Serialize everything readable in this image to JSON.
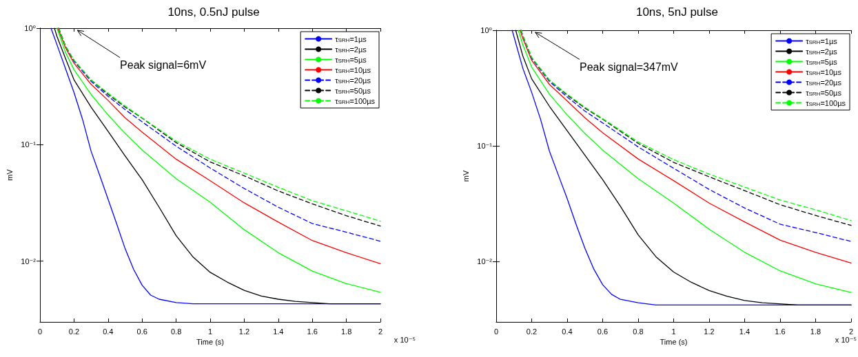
{
  "chart_data": [
    {
      "type": "line",
      "title": "10ns, 0.5nJ pulse",
      "xlabel": "Time (s)",
      "ylabel": "mV",
      "log": "y",
      "grid": false,
      "legend": "top right",
      "marker": "none",
      "xlim": [
        0,
        2
      ],
      "xticks": [
        0,
        0.2,
        0.4,
        0.6,
        0.8,
        1,
        1.2,
        1.4,
        1.6,
        1.8,
        2
      ],
      "ylim": [
        0.003,
        1
      ],
      "yticks": [
        {
          "value": 0.01,
          "label": "10⁻²"
        },
        {
          "value": 0.1,
          "label": "10⁻¹"
        },
        {
          "value": 1,
          "label": "10⁰"
        }
      ],
      "annotations": [
        "x 10⁻⁵",
        "Peak signal=6mV"
      ],
      "series": [
        {
          "name": "τ$_{SRH}$=1µs",
          "color": "#0000ff",
          "line_style": "solid",
          "x": [
            0.065,
            0.1,
            0.15,
            0.2,
            0.25,
            0.3,
            0.35,
            0.4,
            0.45,
            0.5,
            0.55,
            0.6,
            0.65,
            0.7,
            0.8,
            0.9,
            1.0,
            1.2,
            1.6,
            2.0
          ],
          "values": [
            1,
            0.72,
            0.45,
            0.28,
            0.165,
            0.088,
            0.055,
            0.034,
            0.021,
            0.0128,
            0.0085,
            0.0062,
            0.0051,
            0.0047,
            0.0044,
            0.0043,
            0.0043,
            0.0043,
            0.0043,
            0.0043
          ]
        },
        {
          "name": "τ$_{SRH}$=2µs",
          "color": "#000000",
          "line_style": "solid",
          "x": [
            0.085,
            0.1,
            0.15,
            0.2,
            0.3,
            0.4,
            0.5,
            0.6,
            0.7,
            0.8,
            0.9,
            1.0,
            1.1,
            1.2,
            1.3,
            1.4,
            1.5,
            1.7,
            2.0
          ],
          "values": [
            1,
            0.85,
            0.55,
            0.36,
            0.21,
            0.13,
            0.08,
            0.05,
            0.029,
            0.0165,
            0.0108,
            0.008,
            0.0066,
            0.0056,
            0.005,
            0.0047,
            0.0045,
            0.0043,
            0.0043
          ]
        },
        {
          "name": "τ$_{SRH}$=5µs",
          "color": "#00ff00",
          "line_style": "solid",
          "x": [
            0.1,
            0.15,
            0.2,
            0.3,
            0.4,
            0.5,
            0.6,
            0.8,
            1.0,
            1.2,
            1.4,
            1.6,
            1.8,
            2.0
          ],
          "values": [
            1,
            0.62,
            0.44,
            0.27,
            0.18,
            0.125,
            0.09,
            0.051,
            0.032,
            0.0186,
            0.0118,
            0.0082,
            0.0064,
            0.0054
          ]
        },
        {
          "name": "τ$_{SRH}$=10µs",
          "color": "#ff0000",
          "line_style": "solid",
          "x": [
            0.105,
            0.15,
            0.2,
            0.3,
            0.4,
            0.5,
            0.6,
            0.8,
            1.0,
            1.2,
            1.4,
            1.6,
            1.8,
            2.0
          ],
          "values": [
            1,
            0.68,
            0.5,
            0.33,
            0.24,
            0.17,
            0.128,
            0.075,
            0.049,
            0.0316,
            0.0216,
            0.015,
            0.0118,
            0.0095
          ]
        },
        {
          "name": "τ$_{SRH}$=20µs",
          "color": "#0000ff",
          "line_style": "dashed",
          "x": [
            0.11,
            0.15,
            0.2,
            0.3,
            0.4,
            0.5,
            0.6,
            0.8,
            1.0,
            1.2,
            1.4,
            1.6,
            1.8,
            2.0
          ],
          "values": [
            1,
            0.7,
            0.52,
            0.35,
            0.26,
            0.2,
            0.157,
            0.097,
            0.063,
            0.042,
            0.029,
            0.021,
            0.0177,
            0.0148
          ]
        },
        {
          "name": "τ$_{SRH}$=50µs",
          "color": "#000000",
          "line_style": "dashed",
          "x": [
            0.11,
            0.15,
            0.2,
            0.3,
            0.4,
            0.5,
            0.6,
            0.8,
            1.0,
            1.2,
            1.4,
            1.6,
            1.8,
            2.0
          ],
          "values": [
            1,
            0.7,
            0.53,
            0.36,
            0.27,
            0.21,
            0.169,
            0.104,
            0.071,
            0.054,
            0.04,
            0.031,
            0.0245,
            0.02
          ]
        },
        {
          "name": "τ$_{SRH}$=100µs",
          "color": "#00ff00",
          "line_style": "dashed",
          "x": [
            0.11,
            0.15,
            0.2,
            0.3,
            0.4,
            0.5,
            0.6,
            0.8,
            1.0,
            1.2,
            1.4,
            1.6,
            1.8,
            2.0
          ],
          "values": [
            1,
            0.7,
            0.53,
            0.36,
            0.277,
            0.215,
            0.17,
            0.107,
            0.075,
            0.057,
            0.043,
            0.033,
            0.027,
            0.022
          ]
        }
      ]
    },
    {
      "type": "line",
      "title": "10ns, 5nJ pulse",
      "xlabel": "Time (s)",
      "ylabel": "mV",
      "log": "y",
      "grid": false,
      "legend": "top right",
      "marker": "none",
      "xlim": [
        0,
        2
      ],
      "xticks": [
        0,
        0.2,
        0.4,
        0.6,
        0.8,
        1,
        1.2,
        1.4,
        1.6,
        1.8,
        2
      ],
      "ylim": [
        0.003,
        1
      ],
      "yticks": [
        {
          "value": 0.01,
          "label": "10⁻²"
        },
        {
          "value": 0.1,
          "label": "10⁻¹"
        },
        {
          "value": 1,
          "label": "10⁰"
        }
      ],
      "annotations": [
        "x 10⁻⁵",
        "Peak signal=347mV"
      ],
      "series": [
        {
          "name": "τ$_{SRH}$=1µs",
          "color": "#0000ff",
          "line_style": "solid",
          "x": [
            0.09,
            0.15,
            0.2,
            0.25,
            0.3,
            0.35,
            0.4,
            0.45,
            0.5,
            0.55,
            0.6,
            0.65,
            0.7,
            0.8,
            0.9,
            1.0,
            1.2,
            1.6,
            2.0
          ],
          "values": [
            1,
            0.47,
            0.29,
            0.17,
            0.09,
            0.056,
            0.035,
            0.021,
            0.013,
            0.0086,
            0.0063,
            0.0052,
            0.0047,
            0.0044,
            0.0042,
            0.0042,
            0.0042,
            0.0042,
            0.0042
          ]
        },
        {
          "name": "τ$_{SRH}$=2µs",
          "color": "#000000",
          "line_style": "solid",
          "x": [
            0.11,
            0.15,
            0.2,
            0.3,
            0.4,
            0.5,
            0.6,
            0.7,
            0.8,
            0.9,
            1.0,
            1.1,
            1.2,
            1.3,
            1.4,
            1.5,
            1.7,
            2.0
          ],
          "values": [
            1,
            0.6,
            0.38,
            0.22,
            0.135,
            0.083,
            0.051,
            0.03,
            0.017,
            0.011,
            0.0081,
            0.0066,
            0.0056,
            0.005,
            0.0046,
            0.0044,
            0.0042,
            0.0042
          ]
        },
        {
          "name": "τ$_{SRH}$=5µs",
          "color": "#00ff00",
          "line_style": "solid",
          "x": [
            0.125,
            0.15,
            0.2,
            0.3,
            0.4,
            0.5,
            0.6,
            0.8,
            1.0,
            1.2,
            1.4,
            1.6,
            1.8,
            2.0
          ],
          "values": [
            1,
            0.75,
            0.48,
            0.28,
            0.185,
            0.128,
            0.092,
            0.052,
            0.032,
            0.019,
            0.012,
            0.0083,
            0.0064,
            0.0054
          ]
        },
        {
          "name": "τ$_{SRH}$=10µs",
          "color": "#ff0000",
          "line_style": "solid",
          "x": [
            0.135,
            0.15,
            0.2,
            0.3,
            0.4,
            0.5,
            0.6,
            0.8,
            1.0,
            1.2,
            1.4,
            1.6,
            1.8,
            2.0
          ],
          "values": [
            1,
            0.85,
            0.55,
            0.34,
            0.245,
            0.175,
            0.13,
            0.077,
            0.05,
            0.032,
            0.022,
            0.0153,
            0.012,
            0.0097
          ]
        },
        {
          "name": "τ$_{SRH}$=20µs",
          "color": "#0000ff",
          "line_style": "dashed",
          "x": [
            0.14,
            0.15,
            0.2,
            0.3,
            0.4,
            0.5,
            0.6,
            0.8,
            1.0,
            1.2,
            1.4,
            1.6,
            1.8,
            2.0
          ],
          "values": [
            1,
            0.9,
            0.57,
            0.36,
            0.265,
            0.2,
            0.158,
            0.098,
            0.064,
            0.042,
            0.029,
            0.021,
            0.0178,
            0.0149
          ]
        },
        {
          "name": "τ$_{SRH}$=50µs",
          "color": "#000000",
          "line_style": "dashed",
          "x": [
            0.14,
            0.15,
            0.2,
            0.3,
            0.4,
            0.5,
            0.6,
            0.8,
            1.0,
            1.2,
            1.4,
            1.6,
            1.8,
            2.0
          ],
          "values": [
            1,
            0.9,
            0.58,
            0.37,
            0.275,
            0.212,
            0.17,
            0.105,
            0.072,
            0.054,
            0.041,
            0.031,
            0.025,
            0.0205
          ]
        },
        {
          "name": "τ$_{SRH}$=100µs",
          "color": "#00ff00",
          "line_style": "dashed",
          "x": [
            0.14,
            0.15,
            0.2,
            0.3,
            0.4,
            0.5,
            0.6,
            0.8,
            1.0,
            1.2,
            1.4,
            1.6,
            1.8,
            2.0
          ],
          "values": [
            1,
            0.9,
            0.58,
            0.37,
            0.28,
            0.216,
            0.172,
            0.108,
            0.076,
            0.057,
            0.044,
            0.034,
            0.028,
            0.0226
          ]
        }
      ]
    }
  ]
}
